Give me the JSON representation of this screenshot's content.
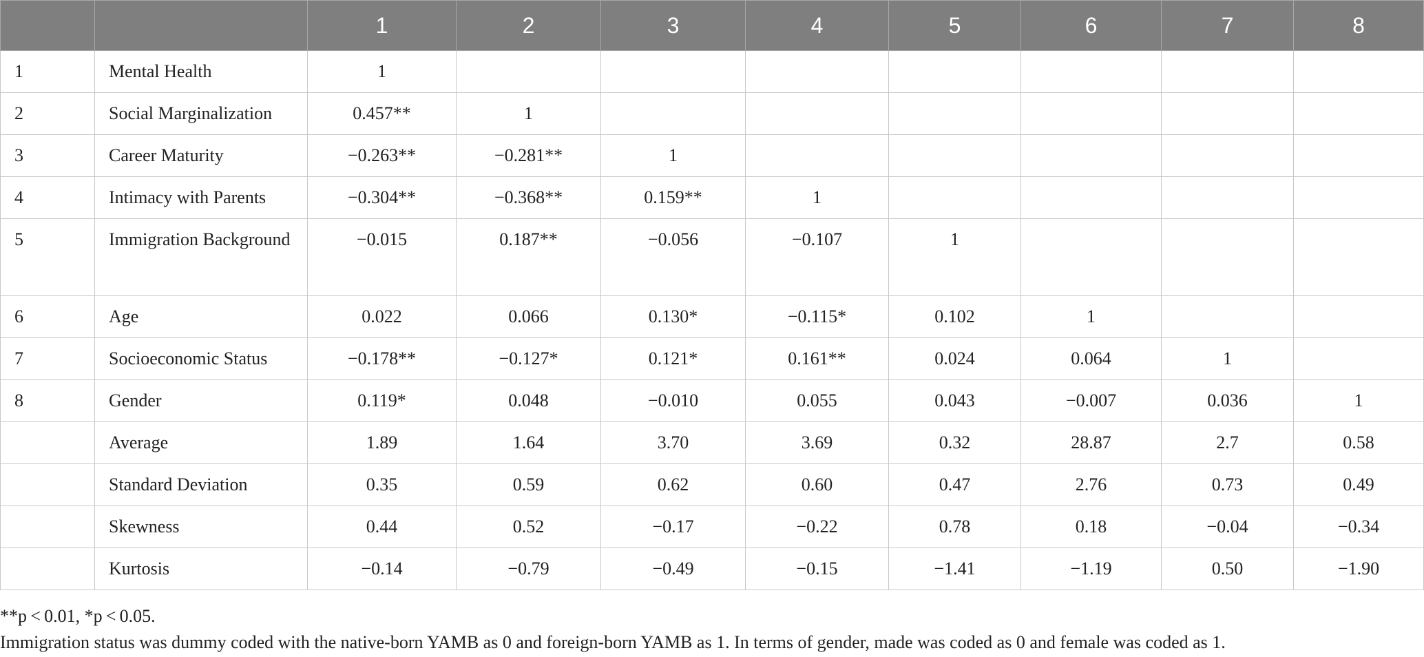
{
  "table": {
    "header": [
      "",
      "",
      "1",
      "2",
      "3",
      "4",
      "5",
      "6",
      "7",
      "8"
    ],
    "rows": [
      {
        "idx": "1",
        "label": "Mental Health",
        "values": [
          "1",
          "",
          "",
          "",
          "",
          "",
          "",
          ""
        ]
      },
      {
        "idx": "2",
        "label": "Social Marginalization",
        "values": [
          "0.457**",
          "1",
          "",
          "",
          "",
          "",
          "",
          ""
        ]
      },
      {
        "idx": "3",
        "label": "Career Maturity",
        "values": [
          "−0.263**",
          "−0.281**",
          "1",
          "",
          "",
          "",
          "",
          ""
        ]
      },
      {
        "idx": "4",
        "label": "Intimacy with Parents",
        "values": [
          "−0.304**",
          "−0.368**",
          "0.159**",
          "1",
          "",
          "",
          "",
          ""
        ]
      },
      {
        "idx": "5",
        "label": "Immigration Background",
        "values": [
          "−0.015",
          "0.187**",
          "−0.056",
          "−0.107",
          "1",
          "",
          "",
          ""
        ]
      },
      {
        "idx": "6",
        "label": "Age",
        "values": [
          "0.022",
          "0.066",
          "0.130*",
          "−0.115*",
          "0.102",
          "1",
          "",
          ""
        ]
      },
      {
        "idx": "7",
        "label": "Socioeconomic Status",
        "values": [
          "−0.178**",
          "−0.127*",
          "0.121*",
          "0.161**",
          "0.024",
          "0.064",
          "1",
          ""
        ]
      },
      {
        "idx": "8",
        "label": "Gender",
        "values": [
          "0.119*",
          "0.048",
          "−0.010",
          "0.055",
          "0.043",
          "−0.007",
          "0.036",
          "1"
        ]
      },
      {
        "idx": "",
        "label": "Average",
        "values": [
          "1.89",
          "1.64",
          "3.70",
          "3.69",
          "0.32",
          "28.87",
          "2.7",
          "0.58"
        ]
      },
      {
        "idx": "",
        "label": "Standard Deviation",
        "values": [
          "0.35",
          "0.59",
          "0.62",
          "0.60",
          "0.47",
          "2.76",
          "0.73",
          "0.49"
        ]
      },
      {
        "idx": "",
        "label": "Skewness",
        "values": [
          "0.44",
          "0.52",
          "−0.17",
          "−0.22",
          "0.78",
          "0.18",
          "−0.04",
          "−0.34"
        ]
      },
      {
        "idx": "",
        "label": "Kurtosis",
        "values": [
          "−0.14",
          "−0.79",
          "−0.49",
          "−0.15",
          "−1.41",
          "−1.19",
          "0.50",
          "−1.90"
        ]
      }
    ]
  },
  "notes": {
    "significance": "**p < 0.01, *p < 0.05.",
    "coding": "Immigration status was dummy coded with the native-born YAMB as 0 and foreign-born YAMB as 1. In terms of gender, made was coded as 0 and female was coded as 1."
  }
}
